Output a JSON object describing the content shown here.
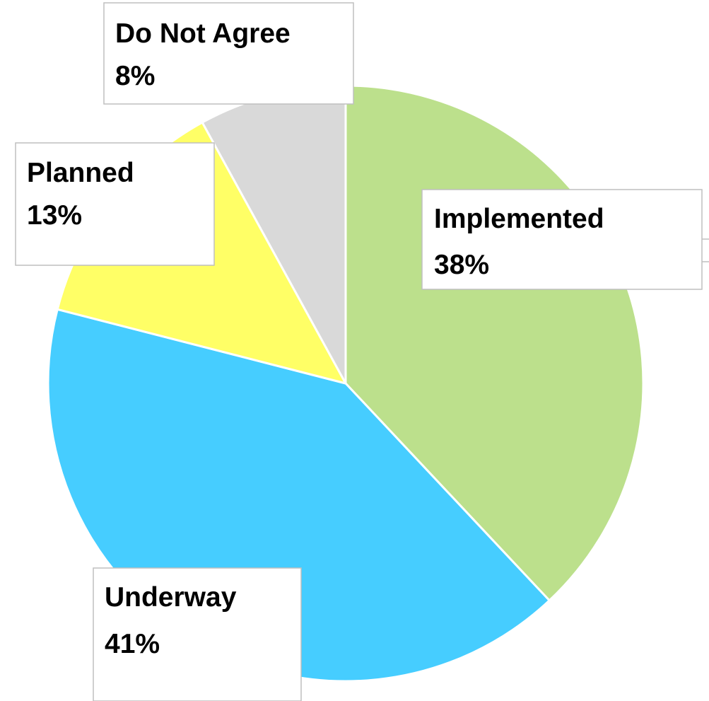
{
  "chart_data": {
    "type": "pie",
    "title": "",
    "slices": [
      {
        "label": "Implemented",
        "value": 38,
        "value_label": "38%",
        "color": "#bce08c"
      },
      {
        "label": "Underway",
        "value": 41,
        "value_label": "41%",
        "color": "#46cdff"
      },
      {
        "label": "Planned",
        "value": 13,
        "value_label": "13%",
        "color": "#ffff66"
      },
      {
        "label": "Do Not Agree",
        "value": 8,
        "value_label": "8%",
        "color": "#d9d9d9"
      }
    ],
    "start_angle_deg": 0,
    "direction": "clockwise",
    "data_labels": "label and percent in boxed callouts",
    "legend": "none"
  }
}
